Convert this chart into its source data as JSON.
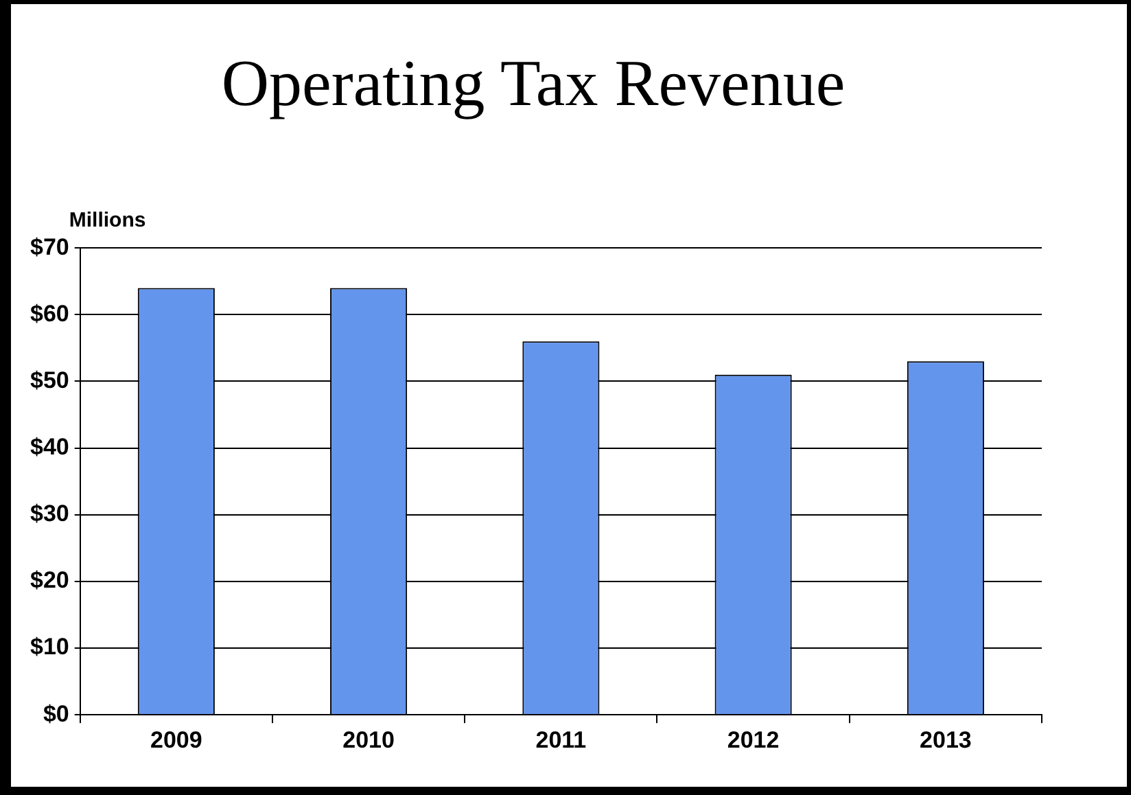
{
  "chart_data": {
    "type": "bar",
    "title": "Operating Tax Revenue",
    "ylabel": "Millions",
    "categories": [
      "2009",
      "2010",
      "2011",
      "2012",
      "2013"
    ],
    "values": [
      64,
      64,
      56,
      51,
      53
    ],
    "color": "#6495ed",
    "ylim": [
      0,
      70
    ],
    "yticks": [
      {
        "value": 0,
        "label": "$0"
      },
      {
        "value": 10,
        "label": "$10"
      },
      {
        "value": 20,
        "label": "$20"
      },
      {
        "value": 30,
        "label": "$30"
      },
      {
        "value": 40,
        "label": "$40"
      },
      {
        "value": 50,
        "label": "$50"
      },
      {
        "value": 60,
        "label": "$60"
      },
      {
        "value": 70,
        "label": "$70"
      }
    ],
    "grid": "y",
    "legend": false
  }
}
